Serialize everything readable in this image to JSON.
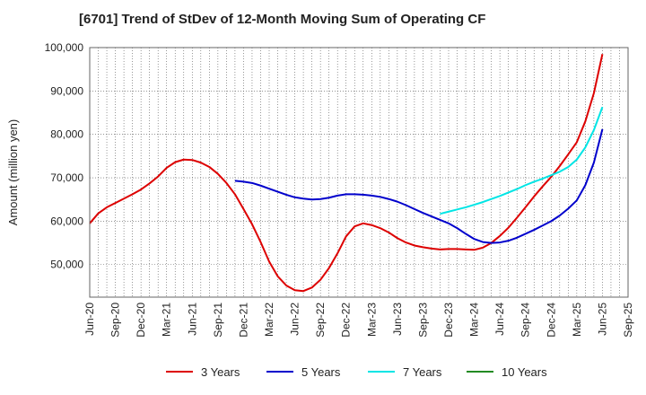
{
  "title": "[6701]  Trend of StDev of 12-Month Moving Sum of Operating CF",
  "chart_data": {
    "type": "line",
    "title": "[6701]  Trend of StDev of 12-Month Moving Sum of Operating CF",
    "xlabel": "",
    "ylabel": "Amount (million yen)",
    "ylim": [
      42500,
      100000
    ],
    "y_ticks": [
      50000,
      60000,
      70000,
      80000,
      90000,
      100000
    ],
    "y_tick_labels": [
      "50,000",
      "60,000",
      "70,000",
      "80,000",
      "90,000",
      "100,000"
    ],
    "x_ticks": [
      "2020-06",
      "2020-09",
      "2020-12",
      "2021-03",
      "2021-06",
      "2021-09",
      "2021-12",
      "2022-03",
      "2022-06",
      "2022-09",
      "2022-12",
      "2023-03",
      "2023-06",
      "2023-09",
      "2023-12",
      "2024-03",
      "2024-06",
      "2024-09",
      "2024-12",
      "2025-03",
      "2025-06",
      "2025-09"
    ],
    "x_tick_labels": [
      "Jun-20",
      "Sep-20",
      "Dec-20",
      "Mar-21",
      "Jun-21",
      "Sep-21",
      "Dec-21",
      "Mar-22",
      "Jun-22",
      "Sep-22",
      "Dec-22",
      "Mar-23",
      "Jun-23",
      "Sep-23",
      "Dec-23",
      "Mar-24",
      "Jun-24",
      "Sep-24",
      "Dec-24",
      "Mar-25",
      "Jun-25",
      "Sep-25"
    ],
    "grid": true,
    "legend_position": "bottom",
    "series": [
      {
        "name": "3 Years",
        "color": "#dd0000",
        "points": [
          [
            "2020-06",
            59500
          ],
          [
            "2020-07",
            61800
          ],
          [
            "2020-08",
            63200
          ],
          [
            "2020-09",
            64200
          ],
          [
            "2020-10",
            65200
          ],
          [
            "2020-11",
            66200
          ],
          [
            "2020-12",
            67300
          ],
          [
            "2021-01",
            68700
          ],
          [
            "2021-02",
            70300
          ],
          [
            "2021-03",
            72300
          ],
          [
            "2021-04",
            73600
          ],
          [
            "2021-05",
            74200
          ],
          [
            "2021-06",
            74100
          ],
          [
            "2021-07",
            73500
          ],
          [
            "2021-08",
            72500
          ],
          [
            "2021-09",
            70900
          ],
          [
            "2021-10",
            68800
          ],
          [
            "2021-11",
            66200
          ],
          [
            "2021-12",
            62800
          ],
          [
            "2022-01",
            59300
          ],
          [
            "2022-02",
            55200
          ],
          [
            "2022-03",
            50700
          ],
          [
            "2022-04",
            47300
          ],
          [
            "2022-05",
            45200
          ],
          [
            "2022-06",
            44100
          ],
          [
            "2022-07",
            43900
          ],
          [
            "2022-08",
            44700
          ],
          [
            "2022-09",
            46500
          ],
          [
            "2022-10",
            49200
          ],
          [
            "2022-11",
            52600
          ],
          [
            "2022-12",
            56500
          ],
          [
            "2023-01",
            58800
          ],
          [
            "2023-02",
            59500
          ],
          [
            "2023-03",
            59100
          ],
          [
            "2023-04",
            58400
          ],
          [
            "2023-05",
            57400
          ],
          [
            "2023-06",
            56100
          ],
          [
            "2023-07",
            55100
          ],
          [
            "2023-08",
            54400
          ],
          [
            "2023-09",
            54000
          ],
          [
            "2023-10",
            53700
          ],
          [
            "2023-11",
            53500
          ],
          [
            "2023-12",
            53600
          ],
          [
            "2024-01",
            53600
          ],
          [
            "2024-02",
            53500
          ],
          [
            "2024-03",
            53400
          ],
          [
            "2024-04",
            53900
          ],
          [
            "2024-05",
            55000
          ],
          [
            "2024-06",
            56600
          ],
          [
            "2024-07",
            58500
          ],
          [
            "2024-08",
            60800
          ],
          [
            "2024-09",
            63200
          ],
          [
            "2024-10",
            65700
          ],
          [
            "2024-11",
            68000
          ],
          [
            "2024-12",
            70200
          ],
          [
            "2025-01",
            72700
          ],
          [
            "2025-02",
            75400
          ],
          [
            "2025-03",
            78200
          ],
          [
            "2025-04",
            83000
          ],
          [
            "2025-05",
            89500
          ],
          [
            "2025-06",
            98500
          ]
        ]
      },
      {
        "name": "5 Years",
        "color": "#0000cc",
        "points": [
          [
            "2021-11",
            69300
          ],
          [
            "2021-12",
            69100
          ],
          [
            "2022-01",
            68800
          ],
          [
            "2022-02",
            68200
          ],
          [
            "2022-03",
            67500
          ],
          [
            "2022-04",
            66800
          ],
          [
            "2022-05",
            66100
          ],
          [
            "2022-06",
            65500
          ],
          [
            "2022-07",
            65200
          ],
          [
            "2022-08",
            65000
          ],
          [
            "2022-09",
            65100
          ],
          [
            "2022-10",
            65400
          ],
          [
            "2022-11",
            65900
          ],
          [
            "2022-12",
            66200
          ],
          [
            "2023-01",
            66200
          ],
          [
            "2023-02",
            66100
          ],
          [
            "2023-03",
            65900
          ],
          [
            "2023-04",
            65600
          ],
          [
            "2023-05",
            65100
          ],
          [
            "2023-06",
            64500
          ],
          [
            "2023-07",
            63700
          ],
          [
            "2023-08",
            62800
          ],
          [
            "2023-09",
            61900
          ],
          [
            "2023-10",
            61100
          ],
          [
            "2023-11",
            60300
          ],
          [
            "2023-12",
            59500
          ],
          [
            "2024-01",
            58400
          ],
          [
            "2024-02",
            57100
          ],
          [
            "2024-03",
            55900
          ],
          [
            "2024-04",
            55200
          ],
          [
            "2024-05",
            55000
          ],
          [
            "2024-06",
            55100
          ],
          [
            "2024-07",
            55500
          ],
          [
            "2024-08",
            56200
          ],
          [
            "2024-09",
            57100
          ],
          [
            "2024-10",
            58000
          ],
          [
            "2024-11",
            59000
          ],
          [
            "2024-12",
            60000
          ],
          [
            "2025-01",
            61300
          ],
          [
            "2025-02",
            62900
          ],
          [
            "2025-03",
            64800
          ],
          [
            "2025-04",
            68300
          ],
          [
            "2025-05",
            73500
          ],
          [
            "2025-06",
            81200
          ]
        ]
      },
      {
        "name": "7 Years",
        "color": "#00e5e5",
        "points": [
          [
            "2023-11",
            61700
          ],
          [
            "2023-12",
            62200
          ],
          [
            "2024-01",
            62700
          ],
          [
            "2024-02",
            63200
          ],
          [
            "2024-03",
            63800
          ],
          [
            "2024-04",
            64400
          ],
          [
            "2024-05",
            65100
          ],
          [
            "2024-06",
            65800
          ],
          [
            "2024-07",
            66600
          ],
          [
            "2024-08",
            67400
          ],
          [
            "2024-09",
            68300
          ],
          [
            "2024-10",
            69100
          ],
          [
            "2024-11",
            69800
          ],
          [
            "2024-12",
            70600
          ],
          [
            "2025-01",
            71400
          ],
          [
            "2025-02",
            72500
          ],
          [
            "2025-03",
            74200
          ],
          [
            "2025-04",
            77000
          ],
          [
            "2025-05",
            81000
          ],
          [
            "2025-06",
            86300
          ]
        ]
      },
      {
        "name": "10 Years",
        "color": "#228b22",
        "points": []
      }
    ]
  }
}
